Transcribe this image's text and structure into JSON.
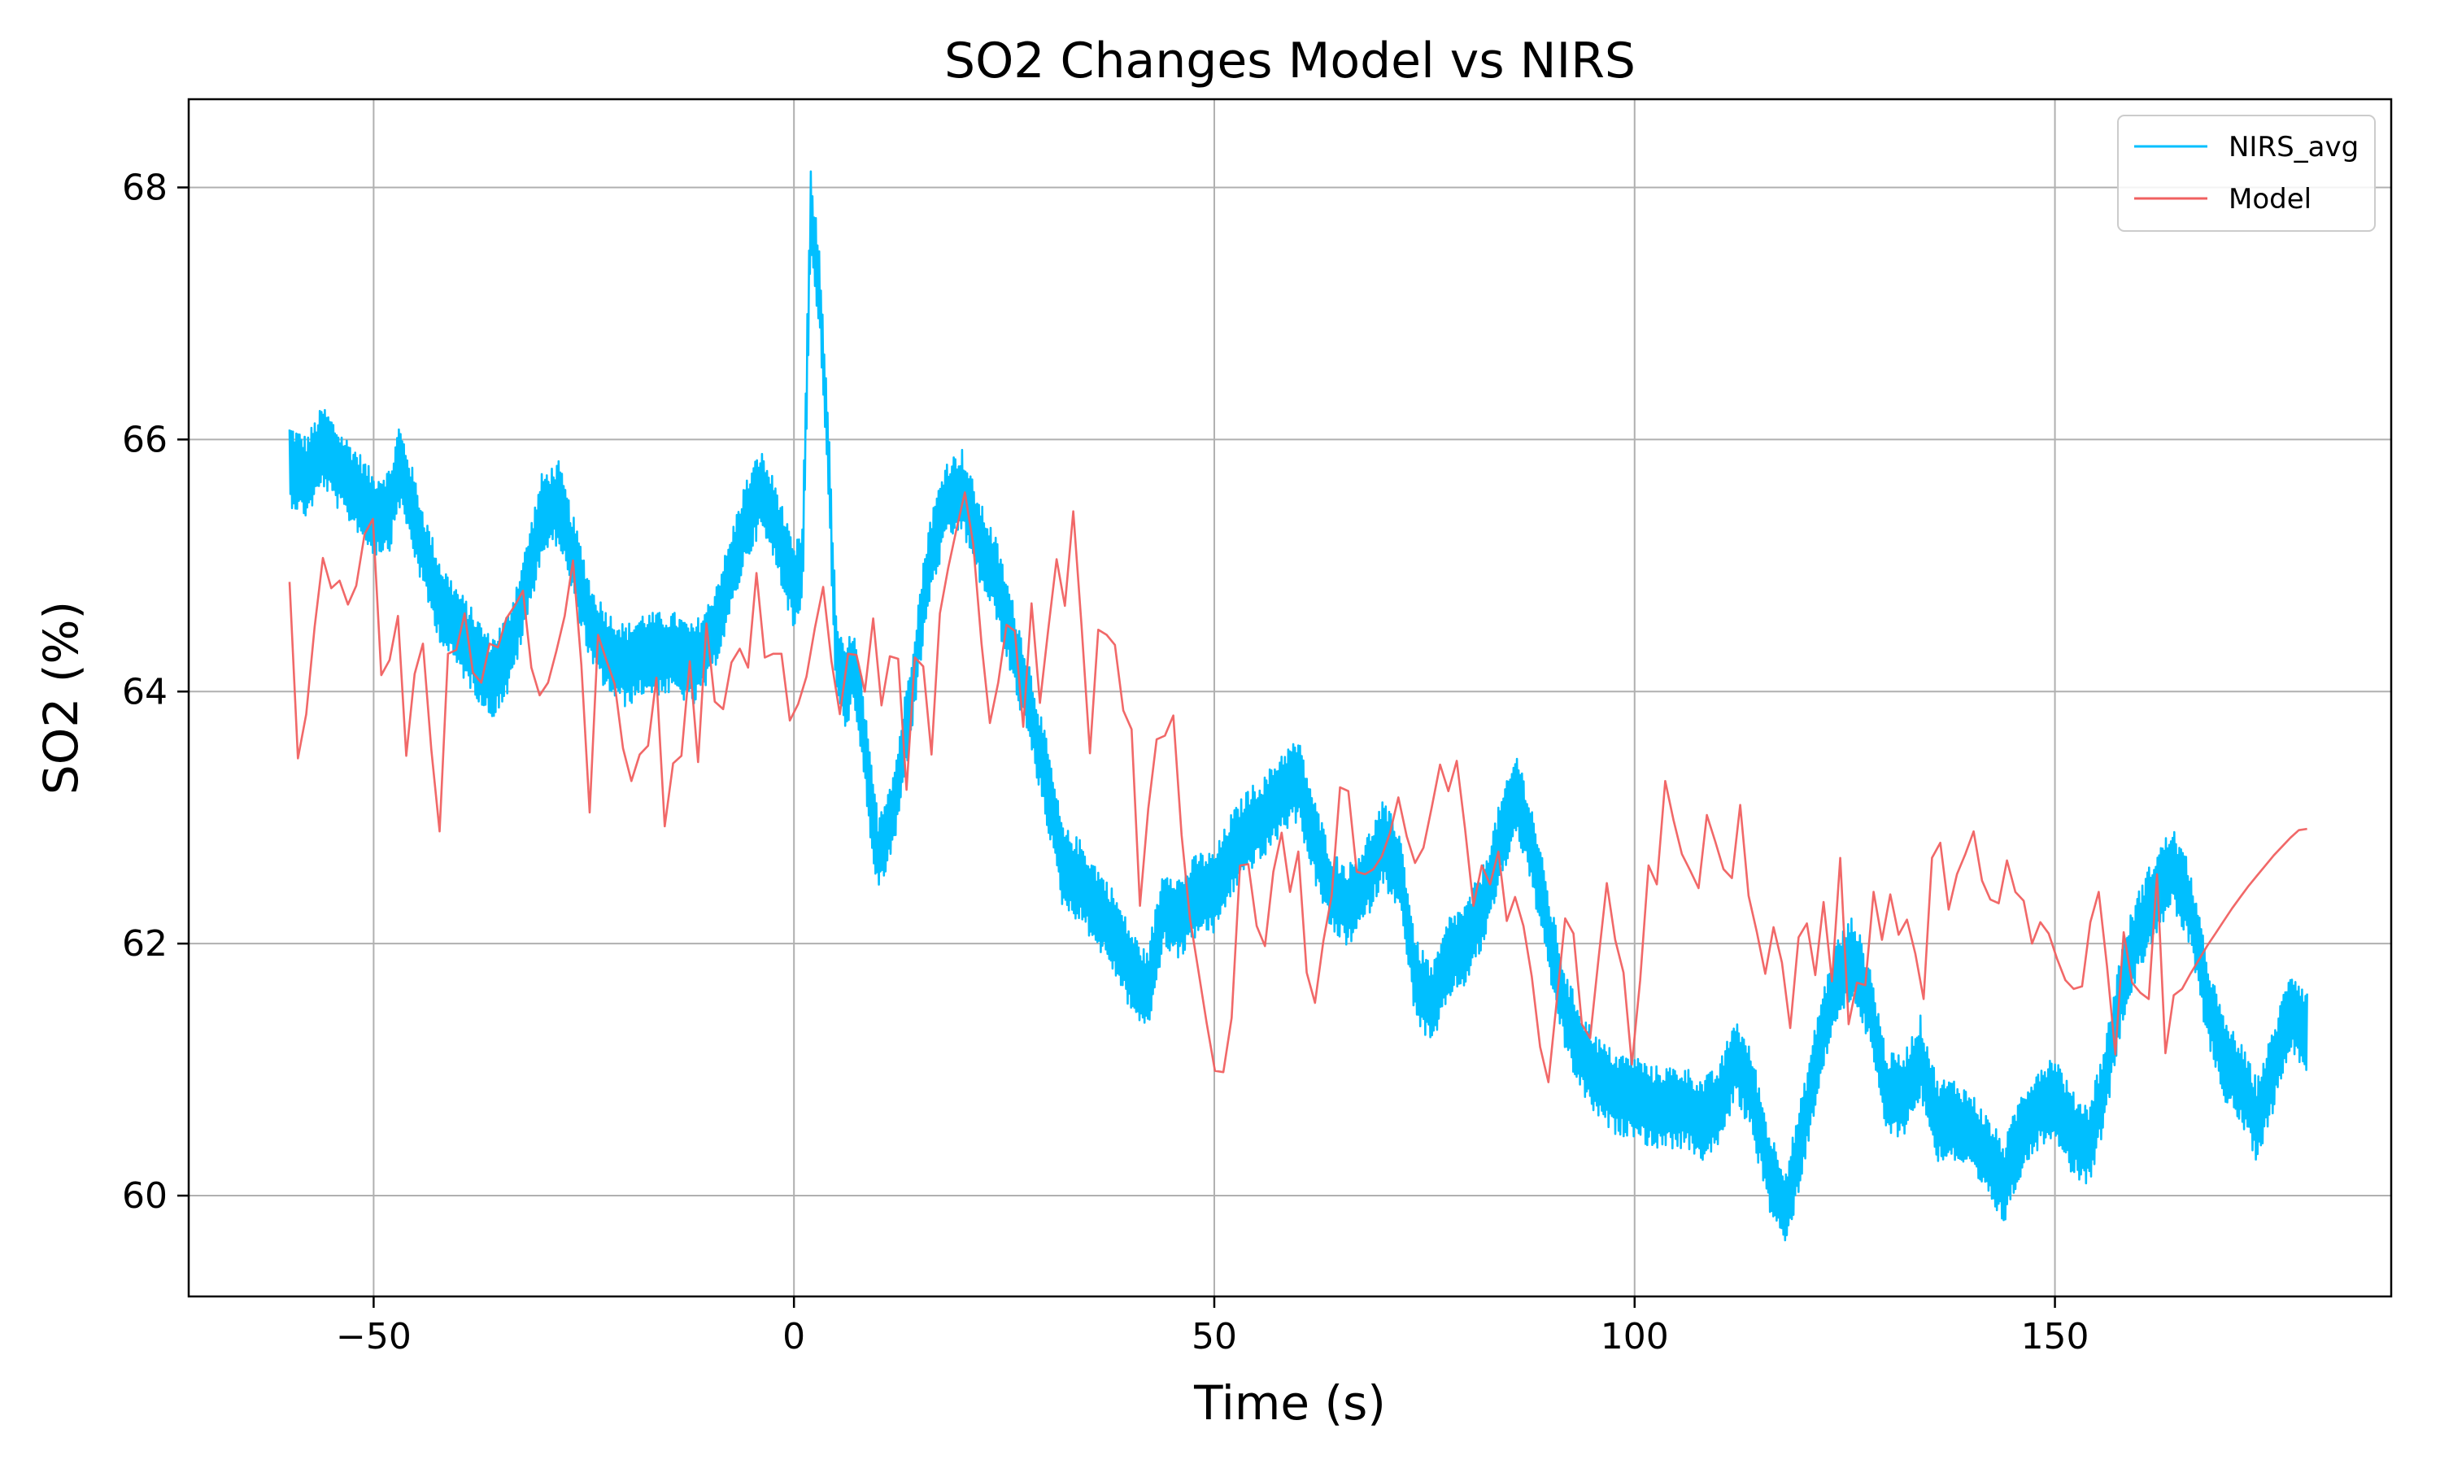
{
  "chart_data": {
    "type": "line",
    "title": "SO2 Changes Model vs NIRS",
    "xlabel": "Time (s)",
    "ylabel": "SO2 (%)",
    "xlim": [
      -72,
      190
    ],
    "ylim": [
      59.2,
      68.7
    ],
    "xticks": [
      -50,
      0,
      50,
      100,
      150
    ],
    "yticks": [
      60,
      62,
      64,
      66,
      68
    ],
    "xtick_labels": [
      "−50",
      "0",
      "50",
      "100",
      "150"
    ],
    "ytick_labels": [
      "60",
      "62",
      "64",
      "66",
      "68"
    ],
    "grid": true,
    "legend_position": "top-right",
    "series": [
      {
        "name": "NIRS_avg",
        "color": "#00bfff",
        "noise_amplitude": 0.33,
        "points": [
          [
            -60,
            65.8
          ],
          [
            -58,
            65.7
          ],
          [
            -56,
            65.95
          ],
          [
            -54,
            65.75
          ],
          [
            -52,
            65.6
          ],
          [
            -50,
            65.4
          ],
          [
            -48,
            65.45
          ],
          [
            -47,
            65.8
          ],
          [
            -46,
            65.6
          ],
          [
            -44,
            65.1
          ],
          [
            -42,
            64.7
          ],
          [
            -40,
            64.5
          ],
          [
            -38,
            64.3
          ],
          [
            -36,
            64.1
          ],
          [
            -34,
            64.3
          ],
          [
            -32,
            64.8
          ],
          [
            -30,
            65.4
          ],
          [
            -28,
            65.5
          ],
          [
            -26,
            65.0
          ],
          [
            -24,
            64.5
          ],
          [
            -22,
            64.3
          ],
          [
            -20,
            64.2
          ],
          [
            -18,
            64.3
          ],
          [
            -14,
            64.3
          ],
          [
            -12,
            64.2
          ],
          [
            -10,
            64.4
          ],
          [
            -8,
            64.8
          ],
          [
            -6,
            65.3
          ],
          [
            -4,
            65.6
          ],
          [
            -2,
            65.3
          ],
          [
            0,
            64.8
          ],
          [
            1,
            65.0
          ],
          [
            2,
            67.8
          ],
          [
            3,
            67.2
          ],
          [
            4,
            66.0
          ],
          [
            5,
            64.3
          ],
          [
            6,
            64.0
          ],
          [
            7,
            64.2
          ],
          [
            8,
            63.8
          ],
          [
            9,
            63.2
          ],
          [
            10,
            62.7
          ],
          [
            11,
            62.9
          ],
          [
            12,
            63.1
          ],
          [
            14,
            64.0
          ],
          [
            16,
            65.0
          ],
          [
            18,
            65.5
          ],
          [
            20,
            65.6
          ],
          [
            22,
            65.2
          ],
          [
            24,
            64.9
          ],
          [
            26,
            64.4
          ],
          [
            28,
            63.9
          ],
          [
            30,
            63.3
          ],
          [
            32,
            62.6
          ],
          [
            34,
            62.5
          ],
          [
            36,
            62.3
          ],
          [
            38,
            62.1
          ],
          [
            40,
            61.8
          ],
          [
            42,
            61.6
          ],
          [
            44,
            62.3
          ],
          [
            46,
            62.2
          ],
          [
            48,
            62.4
          ],
          [
            50,
            62.4
          ],
          [
            52,
            62.7
          ],
          [
            54,
            62.9
          ],
          [
            56,
            63.0
          ],
          [
            58,
            63.2
          ],
          [
            60,
            63.3
          ],
          [
            62,
            62.8
          ],
          [
            64,
            62.4
          ],
          [
            66,
            62.3
          ],
          [
            68,
            62.5
          ],
          [
            70,
            62.8
          ],
          [
            72,
            62.6
          ],
          [
            74,
            61.7
          ],
          [
            76,
            61.5
          ],
          [
            78,
            61.9
          ],
          [
            80,
            62.0
          ],
          [
            82,
            62.3
          ],
          [
            84,
            62.8
          ],
          [
            86,
            63.2
          ],
          [
            88,
            62.7
          ],
          [
            90,
            62.0
          ],
          [
            92,
            61.4
          ],
          [
            94,
            61.1
          ],
          [
            96,
            60.9
          ],
          [
            98,
            60.8
          ],
          [
            100,
            60.8
          ],
          [
            102,
            60.7
          ],
          [
            104,
            60.7
          ],
          [
            106,
            60.7
          ],
          [
            108,
            60.6
          ],
          [
            110,
            60.7
          ],
          [
            112,
            61.1
          ],
          [
            114,
            60.8
          ],
          [
            116,
            60.2
          ],
          [
            118,
            59.9
          ],
          [
            120,
            60.5
          ],
          [
            122,
            61.2
          ],
          [
            124,
            61.7
          ],
          [
            126,
            61.9
          ],
          [
            128,
            61.5
          ],
          [
            130,
            60.8
          ],
          [
            132,
            60.8
          ],
          [
            134,
            61.1
          ],
          [
            136,
            60.6
          ],
          [
            138,
            60.6
          ],
          [
            140,
            60.5
          ],
          [
            142,
            60.3
          ],
          [
            144,
            60.1
          ],
          [
            146,
            60.5
          ],
          [
            148,
            60.7
          ],
          [
            150,
            60.8
          ],
          [
            152,
            60.5
          ],
          [
            154,
            60.4
          ],
          [
            156,
            60.9
          ],
          [
            158,
            61.7
          ],
          [
            160,
            62.1
          ],
          [
            162,
            62.4
          ],
          [
            164,
            62.6
          ],
          [
            166,
            62.3
          ],
          [
            168,
            61.6
          ],
          [
            170,
            61.1
          ],
          [
            172,
            60.9
          ],
          [
            174,
            60.6
          ],
          [
            176,
            61.0
          ],
          [
            178,
            61.5
          ],
          [
            180,
            61.3
          ]
        ]
      },
      {
        "name": "Model",
        "color": "#f06060",
        "values": [
          64.87,
          63.47,
          63.82,
          64.51,
          65.06,
          64.82,
          64.88,
          64.69,
          64.84,
          65.25,
          65.37,
          64.13,
          64.25,
          64.6,
          63.49,
          64.14,
          64.38,
          63.54,
          62.89,
          64.3,
          64.33,
          64.62,
          64.15,
          64.07,
          64.38,
          64.35,
          64.58,
          64.68,
          64.8,
          64.19,
          63.97,
          64.07,
          64.32,
          64.6,
          65.04,
          64.21,
          63.04,
          64.45,
          64.25,
          64.06,
          63.55,
          63.29,
          63.5,
          63.57,
          64.11,
          62.93,
          63.43,
          63.49,
          64.24,
          63.44,
          64.54,
          63.92,
          63.86,
          64.23,
          64.34,
          64.19,
          64.94,
          64.27,
          64.3,
          64.3,
          63.77,
          63.9,
          64.12,
          64.5,
          64.83,
          64.24,
          63.82,
          64.3,
          64.29,
          64.0,
          64.58,
          63.89,
          64.28,
          64.26,
          63.22,
          64.27,
          64.2,
          63.5,
          64.62,
          64.98,
          65.29,
          65.58,
          65.17,
          64.38,
          63.75,
          64.07,
          64.53,
          64.48,
          63.72,
          64.7,
          63.91,
          64.49,
          65.05,
          64.68,
          65.43,
          64.52,
          63.51,
          64.49,
          64.45,
          64.37,
          63.85,
          63.7,
          62.3,
          63.07,
          63.62,
          63.65,
          63.81,
          62.86,
          62.2,
          61.79,
          61.37,
          60.99,
          60.98,
          61.41,
          62.62,
          62.63,
          62.14,
          61.98,
          62.57,
          62.88,
          62.41,
          62.73,
          61.77,
          61.53,
          62.02,
          62.38,
          63.24,
          63.21,
          62.57,
          62.55,
          62.59,
          62.69,
          62.88,
          63.16,
          62.85,
          62.64,
          62.76,
          63.08,
          63.42,
          63.21,
          63.45,
          62.91,
          62.3,
          62.62,
          62.47,
          62.73,
          62.18,
          62.37,
          62.14,
          61.74,
          61.18,
          60.9,
          61.55,
          62.2,
          62.08,
          61.36,
          61.25,
          61.88,
          62.48,
          62.03,
          61.77,
          61.04,
          61.71,
          62.62,
          62.47,
          63.29,
          62.98,
          62.71,
          62.58,
          62.44,
          63.02,
          62.81,
          62.59,
          62.52,
          63.1,
          62.38,
          62.09,
          61.76,
          62.13,
          61.85,
          61.33,
          62.05,
          62.16,
          61.75,
          62.33,
          61.7,
          62.68,
          61.36,
          61.69,
          61.67,
          62.41,
          62.03,
          62.39,
          62.07,
          62.19,
          61.92,
          61.56,
          62.68,
          62.8,
          62.27,
          62.55,
          62.71,
          62.89,
          62.5,
          62.35,
          62.32,
          62.66,
          62.41,
          62.34,
          62.0,
          62.17,
          62.08,
          61.88,
          61.71,
          61.64,
          61.66,
          62.17,
          62.41,
          61.82,
          61.12,
          62.09,
          61.69,
          61.61,
          61.56,
          62.55,
          61.13,
          61.59,
          61.64,
          61.76,
          61.87,
          61.98,
          62.08,
          62.18,
          62.28,
          62.37,
          62.46,
          62.54,
          62.62,
          62.7,
          62.77,
          62.84,
          62.9,
          62.91
        ]
      }
    ]
  }
}
